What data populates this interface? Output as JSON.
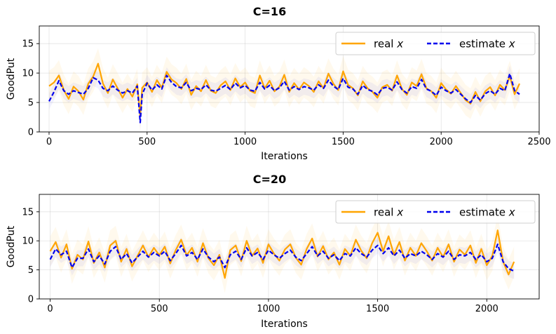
{
  "chart_data": [
    {
      "type": "line",
      "title": "C=16",
      "xlabel": "Iterations",
      "ylabel": "GoodPut",
      "xlim": [
        -50,
        2500
      ],
      "ylim": [
        0,
        18
      ],
      "xticks": [
        0,
        500,
        1000,
        1500,
        2000,
        2500
      ],
      "yticks": [
        0,
        5,
        10,
        15
      ],
      "grid": true,
      "legend_position": "top-right",
      "legend_columns": 2,
      "series": [
        {
          "name": "real x",
          "legend_main": "real ",
          "legend_var": "x",
          "color": "#FFA500",
          "style": "solid",
          "x": [
            0,
            25,
            50,
            75,
            100,
            125,
            150,
            175,
            200,
            225,
            250,
            275,
            300,
            325,
            350,
            375,
            400,
            425,
            450,
            465,
            475,
            500,
            525,
            550,
            575,
            600,
            625,
            650,
            675,
            700,
            725,
            750,
            775,
            800,
            825,
            850,
            875,
            900,
            925,
            950,
            975,
            1000,
            1025,
            1050,
            1075,
            1100,
            1125,
            1150,
            1175,
            1200,
            1225,
            1250,
            1275,
            1300,
            1325,
            1350,
            1375,
            1400,
            1425,
            1450,
            1475,
            1500,
            1525,
            1550,
            1575,
            1600,
            1625,
            1650,
            1675,
            1700,
            1725,
            1750,
            1775,
            1800,
            1825,
            1850,
            1875,
            1900,
            1925,
            1950,
            1975,
            2000,
            2025,
            2050,
            2075,
            2100,
            2125,
            2150,
            2175,
            2200,
            2225,
            2250,
            2275,
            2300,
            2325,
            2350,
            2375,
            2400
          ],
          "y": [
            7.8,
            8.4,
            9.6,
            7.1,
            5.6,
            7.7,
            6.9,
            5.5,
            8.2,
            9.4,
            11.6,
            8.2,
            6.6,
            8.9,
            7.4,
            5.8,
            7.3,
            6.0,
            8.1,
            2.7,
            7.5,
            8.4,
            6.8,
            8.8,
            7.5,
            10.2,
            8.9,
            8.3,
            7.3,
            9.0,
            6.3,
            7.8,
            6.9,
            8.8,
            7.0,
            6.6,
            7.9,
            8.6,
            7.1,
            9.1,
            7.6,
            8.4,
            7.0,
            6.6,
            9.6,
            7.4,
            8.7,
            6.9,
            7.7,
            9.7,
            6.8,
            8.3,
            7.2,
            8.4,
            7.8,
            6.8,
            8.6,
            7.4,
            9.9,
            8.2,
            7.1,
            10.3,
            8.0,
            7.4,
            6.2,
            8.6,
            7.4,
            6.8,
            5.8,
            7.6,
            8.0,
            7.0,
            9.6,
            7.3,
            6.3,
            8.4,
            7.8,
            9.8,
            7.4,
            6.9,
            5.8,
            8.3,
            7.2,
            6.5,
            7.8,
            6.6,
            5.4,
            4.8,
            6.8,
            5.2,
            6.9,
            7.6,
            6.2,
            8.0,
            7.1,
            9.5,
            6.4,
            8.2
          ]
        },
        {
          "name": "estimate x",
          "legend_main": "estimate ",
          "legend_var": "x",
          "color": "#0000EE",
          "style": "dashed",
          "x": [
            0,
            25,
            50,
            75,
            100,
            125,
            150,
            175,
            200,
            225,
            250,
            275,
            300,
            325,
            350,
            375,
            400,
            425,
            450,
            465,
            475,
            500,
            525,
            550,
            575,
            600,
            625,
            650,
            675,
            700,
            725,
            750,
            775,
            800,
            825,
            850,
            875,
            900,
            925,
            950,
            975,
            1000,
            1025,
            1050,
            1075,
            1100,
            1125,
            1150,
            1175,
            1200,
            1225,
            1250,
            1275,
            1300,
            1325,
            1350,
            1375,
            1400,
            1425,
            1450,
            1475,
            1500,
            1525,
            1550,
            1575,
            1600,
            1625,
            1650,
            1675,
            1700,
            1725,
            1750,
            1775,
            1800,
            1825,
            1850,
            1875,
            1900,
            1925,
            1950,
            1975,
            2000,
            2025,
            2050,
            2075,
            2100,
            2125,
            2150,
            2175,
            2200,
            2225,
            2250,
            2275,
            2300,
            2325,
            2350,
            2375,
            2400
          ],
          "y": [
            5.2,
            6.8,
            8.7,
            7.0,
            6.4,
            7.0,
            6.7,
            6.4,
            7.4,
            9.2,
            8.8,
            7.4,
            7.0,
            7.8,
            7.1,
            6.6,
            7.0,
            6.6,
            7.8,
            1.6,
            6.4,
            8.3,
            7.1,
            8.0,
            7.3,
            9.6,
            8.4,
            7.7,
            7.5,
            8.4,
            7.0,
            7.4,
            7.2,
            8.0,
            7.1,
            6.9,
            7.4,
            7.9,
            7.2,
            8.3,
            7.5,
            7.9,
            7.1,
            6.9,
            8.4,
            7.3,
            7.9,
            7.0,
            7.5,
            8.6,
            7.1,
            7.7,
            7.2,
            7.7,
            7.5,
            7.1,
            8.0,
            7.4,
            8.8,
            7.8,
            7.2,
            9.1,
            7.6,
            7.3,
            6.4,
            7.9,
            7.2,
            6.9,
            6.3,
            7.4,
            7.6,
            7.1,
            8.5,
            7.2,
            6.6,
            7.7,
            7.4,
            8.9,
            7.3,
            6.9,
            6.2,
            7.6,
            7.0,
            6.6,
            7.2,
            6.4,
            5.6,
            5.0,
            6.2,
            5.4,
            6.5,
            7.0,
            6.4,
            7.4,
            7.0,
            9.9,
            7.0,
            6.4
          ]
        }
      ]
    },
    {
      "type": "line",
      "title": "C=20",
      "xlabel": "Iterations",
      "ylabel": "GoodPut",
      "xlim": [
        -50,
        2240
      ],
      "ylim": [
        0,
        18
      ],
      "xticks": [
        0,
        500,
        1000,
        1500,
        2000
      ],
      "yticks": [
        0,
        5,
        10,
        15
      ],
      "grid": true,
      "legend_position": "top-right",
      "legend_columns": 2,
      "series": [
        {
          "name": "real x",
          "legend_main": "real ",
          "legend_var": "x",
          "color": "#FFA500",
          "style": "solid",
          "x": [
            0,
            25,
            50,
            75,
            100,
            125,
            150,
            175,
            200,
            225,
            250,
            275,
            300,
            325,
            350,
            375,
            400,
            425,
            450,
            475,
            500,
            525,
            550,
            575,
            600,
            625,
            650,
            675,
            700,
            725,
            750,
            775,
            800,
            825,
            850,
            875,
            900,
            925,
            950,
            975,
            1000,
            1025,
            1050,
            1075,
            1100,
            1125,
            1150,
            1175,
            1200,
            1225,
            1250,
            1275,
            1300,
            1325,
            1350,
            1375,
            1400,
            1425,
            1450,
            1475,
            1500,
            1525,
            1550,
            1575,
            1600,
            1625,
            1650,
            1675,
            1700,
            1725,
            1750,
            1775,
            1800,
            1825,
            1850,
            1875,
            1900,
            1925,
            1950,
            1975,
            2000,
            2025,
            2050,
            2075,
            2100,
            2125
          ],
          "y": [
            8.2,
            9.8,
            7.1,
            9.4,
            5.2,
            7.6,
            6.8,
            9.9,
            6.2,
            8.0,
            5.4,
            9.2,
            10.0,
            6.4,
            8.6,
            5.6,
            7.4,
            9.2,
            7.2,
            8.8,
            7.5,
            9.0,
            6.1,
            8.4,
            10.2,
            7.5,
            8.8,
            6.4,
            9.6,
            7.0,
            5.8,
            7.6,
            3.6,
            8.4,
            9.2,
            6.5,
            10.0,
            7.4,
            8.7,
            6.2,
            9.4,
            7.8,
            6.6,
            8.5,
            9.4,
            7.1,
            5.9,
            8.6,
            10.4,
            7.3,
            9.1,
            6.8,
            8.0,
            5.9,
            8.6,
            7.4,
            10.2,
            8.3,
            7.0,
            9.6,
            11.4,
            8.2,
            10.8,
            7.6,
            9.8,
            6.6,
            8.8,
            7.4,
            9.6,
            8.2,
            6.6,
            8.8,
            7.2,
            9.4,
            6.4,
            8.5,
            7.6,
            9.2,
            6.2,
            8.6,
            5.8,
            7.4,
            11.8,
            6.4,
            4.2,
            6.4
          ]
        },
        {
          "name": "estimate x",
          "legend_main": "estimate ",
          "legend_var": "x",
          "color": "#0000EE",
          "style": "dashed",
          "x": [
            0,
            25,
            50,
            75,
            100,
            125,
            150,
            175,
            200,
            225,
            250,
            275,
            300,
            325,
            350,
            375,
            400,
            425,
            450,
            475,
            500,
            525,
            550,
            575,
            600,
            625,
            650,
            675,
            700,
            725,
            750,
            775,
            800,
            825,
            850,
            875,
            900,
            925,
            950,
            975,
            1000,
            1025,
            1050,
            1075,
            1100,
            1125,
            1150,
            1175,
            1200,
            1225,
            1250,
            1275,
            1300,
            1325,
            1350,
            1375,
            1400,
            1425,
            1450,
            1475,
            1500,
            1525,
            1550,
            1575,
            1600,
            1625,
            1650,
            1675,
            1700,
            1725,
            1750,
            1775,
            1800,
            1825,
            1850,
            1875,
            1900,
            1925,
            1950,
            1975,
            2000,
            2025,
            2050,
            2075,
            2100,
            2125
          ],
          "y": [
            6.8,
            8.6,
            7.6,
            8.2,
            5.4,
            7.0,
            7.0,
            8.6,
            6.4,
            7.4,
            6.0,
            8.2,
            9.0,
            6.8,
            7.8,
            6.2,
            7.2,
            8.2,
            7.2,
            8.0,
            7.4,
            8.2,
            6.6,
            7.8,
            9.2,
            7.4,
            8.0,
            6.8,
            8.6,
            7.2,
            6.4,
            7.2,
            5.4,
            7.6,
            8.2,
            6.8,
            8.8,
            7.4,
            8.0,
            6.8,
            8.4,
            7.6,
            7.0,
            7.8,
            8.4,
            7.2,
            6.6,
            7.8,
            9.0,
            7.4,
            8.2,
            7.0,
            7.6,
            6.6,
            7.8,
            7.4,
            8.8,
            7.8,
            7.2,
            8.4,
            9.2,
            7.8,
            8.8,
            7.4,
            8.4,
            7.0,
            7.8,
            7.4,
            8.2,
            7.6,
            6.8,
            7.8,
            7.2,
            8.2,
            6.8,
            7.6,
            7.4,
            8.0,
            6.8,
            7.6,
            6.4,
            7.0,
            9.4,
            6.4,
            5.2,
            4.8
          ]
        }
      ]
    }
  ]
}
